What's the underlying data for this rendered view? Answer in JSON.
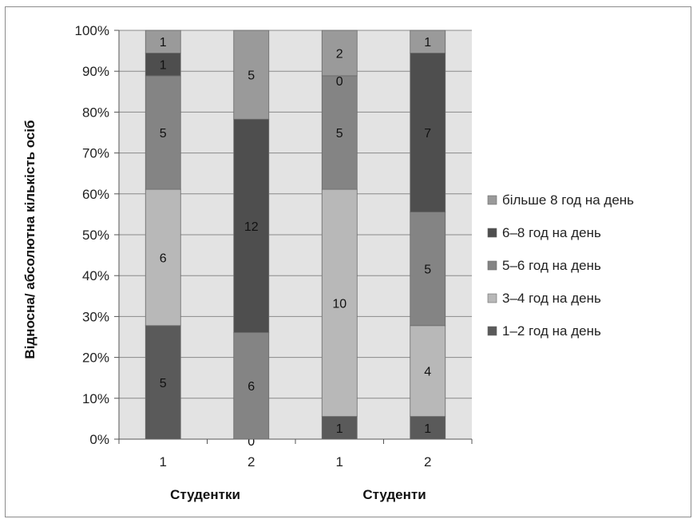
{
  "chart_data": {
    "type": "bar",
    "stacked": true,
    "percent_stacked": true,
    "title": "",
    "ylabel": "Відносна/ абсолютна кількість осіб",
    "xlabel": "",
    "ylim": [
      0,
      100
    ],
    "y_ticks": [
      "0%",
      "10%",
      "20%",
      "30%",
      "40%",
      "50%",
      "60%",
      "70%",
      "80%",
      "90%",
      "100%"
    ],
    "categories": [
      "1",
      "2",
      "1",
      "2"
    ],
    "groups": [
      {
        "label": "Студентки",
        "categories": [
          "1",
          "2"
        ]
      },
      {
        "label": "Студенти",
        "categories": [
          "1",
          "2"
        ]
      }
    ],
    "grid": true,
    "legend_position": "right",
    "series": [
      {
        "name": "1–2 год на день",
        "color": "#5a5a5a",
        "values": [
          5,
          0,
          1,
          1
        ]
      },
      {
        "name": "3–4 год на день",
        "color": "#b8b8b8",
        "values": [
          6,
          6,
          10,
          4
        ]
      },
      {
        "name": "5–6 год на день",
        "color": "#848484",
        "values": [
          5,
          12,
          5,
          5
        ]
      },
      {
        "name": "6–8 год на день",
        "color": "#4e4e4e",
        "values": [
          1,
          5,
          0,
          7
        ]
      },
      {
        "name": "більше 8 год на день",
        "color": "#9a9a9a",
        "values": [
          1,
          0,
          2,
          1
        ]
      }
    ],
    "segment_labels": [
      [
        "5",
        "6",
        "5",
        "1",
        "1"
      ],
      [
        "0",
        "6",
        "12",
        "5",
        ""
      ],
      [
        "1",
        "10",
        "5",
        "0",
        "2"
      ],
      [
        "1",
        "4",
        "5",
        "7",
        "1"
      ]
    ],
    "segment_colors": [
      [
        "#5a5a5a",
        "#b8b8b8",
        "#848484",
        "#4e4e4e",
        "#9a9a9a"
      ],
      [
        "#5a5a5a",
        "#848484",
        "#4e4e4e",
        "#9a9a9a",
        "#9a9a9a"
      ],
      [
        "#5a5a5a",
        "#b8b8b8",
        "#848484",
        "#4e4e4e",
        "#9a9a9a"
      ],
      [
        "#5a5a5a",
        "#b8b8b8",
        "#848484",
        "#4e4e4e",
        "#9a9a9a"
      ]
    ],
    "legend_order": [
      "більше 8 год на день",
      "6–8 год на день",
      "5–6 год на день",
      "3–4 год на день",
      "1–2 год на день"
    ]
  }
}
